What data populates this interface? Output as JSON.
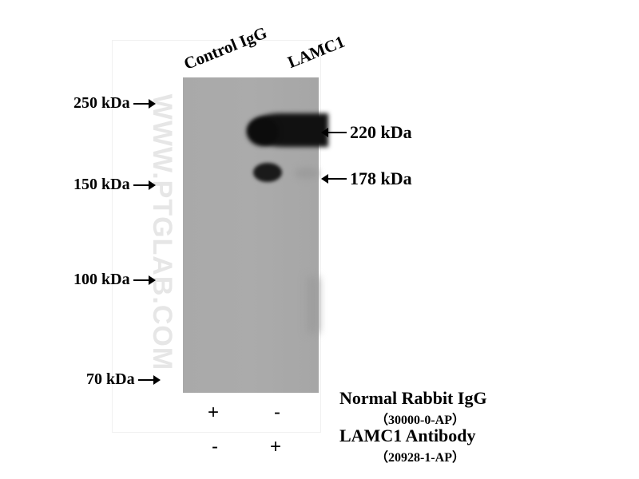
{
  "watermark": "WWW.PTGLAB.COM",
  "lanes": [
    {
      "label": "Control IgG"
    },
    {
      "label": "LAMC1"
    }
  ],
  "markers_left": [
    "250 kDa",
    "150 kDa",
    "100 kDa",
    "70 kDa"
  ],
  "bands_right": [
    "220 kDa",
    "178 kDa"
  ],
  "reagents": [
    {
      "name": "Normal Rabbit IgG",
      "catalog": "（30000-0-AP）",
      "lane_signs": [
        "+",
        "-"
      ]
    },
    {
      "name": "LAMC1 Antibody",
      "catalog": "（20928-1-AP）",
      "lane_signs": [
        "-",
        "+"
      ]
    }
  ]
}
